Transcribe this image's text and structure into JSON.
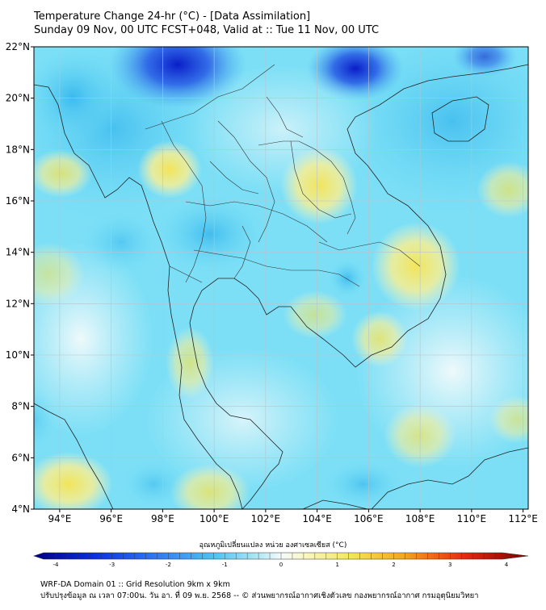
{
  "header": {
    "title": "Temperature Change 24-hr (°C) - [Data Assimilation]",
    "subtitle": "Sunday 09 Nov, 00 UTC FCST+048, Valid at :: Tue 11 Nov, 00 UTC"
  },
  "map": {
    "lat_labels": [
      "22°N",
      "20°N",
      "18°N",
      "16°N",
      "14°N",
      "12°N",
      "10°N",
      "8°N",
      "6°N",
      "4°N"
    ],
    "lon_labels": [
      "94°E",
      "96°E",
      "98°E",
      "100°E",
      "102°E",
      "104°E",
      "106°E",
      "108°E",
      "110°E",
      "112°E"
    ],
    "lat_range": [
      4,
      22
    ],
    "lon_range": [
      93,
      112.2
    ],
    "grid": true
  },
  "colorbar": {
    "label": "อุณหภูมิเปลี่ยนแปลง หน่วย องศาเซลเซียส (°C)",
    "ticks": [
      "-4",
      "-3",
      "-2",
      "-1",
      "0",
      "1",
      "2",
      "3",
      "4"
    ],
    "range": [
      -4,
      4
    ]
  },
  "footer": {
    "line1": "WRF-DA Domain 01 :: Grid Resolution 9km x 9km",
    "line2": "ปรับปรุงข้อมูล ณ เวลา 07:00น. วัน อา. ที่ 09 พ.ย. 2568 -- © ส่วนพยากรณ์อากาศเชิงตัวเลข กองพยากรณ์อากาศ กรมอุตุนิยมวิทยา"
  },
  "colors": {
    "background_field": "#6fdcf6",
    "cold_core": "#1a3fd6",
    "warm_patch": "#f5ef8a",
    "coastline": "#222222",
    "gridline": "#b9c4cc"
  }
}
